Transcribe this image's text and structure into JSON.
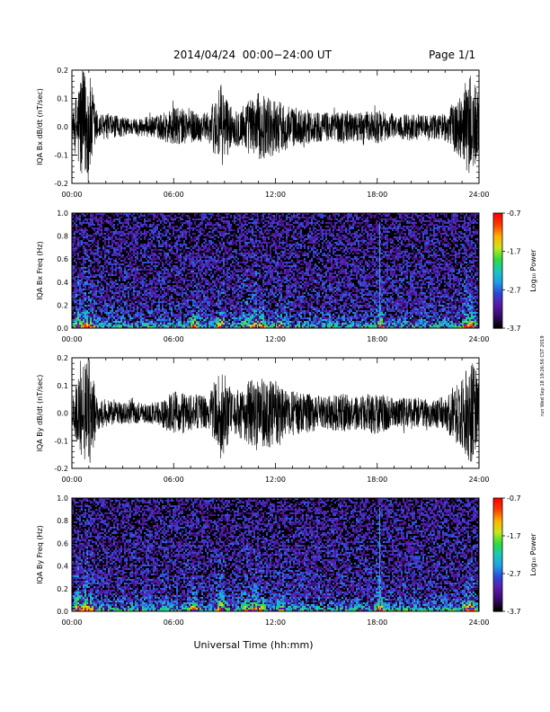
{
  "header": {
    "title": "2014/04/24  00:00−24:00 UT",
    "page": "Page 1/1"
  },
  "footer": {
    "xlabel": "Universal Time (hh:mm)"
  },
  "side_timestamp": "run Wed Sep 18 19:26:56 CST 2019",
  "colorbar": {
    "label": "Log₁₀ Power",
    "ticks": [
      "-0.7",
      "-1.7",
      "-2.7",
      "-3.7"
    ],
    "range": [
      -3.7,
      -0.7
    ],
    "colors": [
      "#000000",
      "#3a0a6e",
      "#5a1aa8",
      "#2d49d8",
      "#1fa0e8",
      "#19c8b8",
      "#2edc3c",
      "#c8e61c",
      "#ffb400",
      "#ff4000",
      "#ff0000"
    ]
  },
  "chart_data": [
    {
      "type": "line",
      "name": "IQA Bx dB/dt",
      "ylabel": "IQA Bx dB/dt (nT/sec)",
      "xlim": [
        0,
        24
      ],
      "ylim": [
        -0.2,
        0.2
      ],
      "x_ticks": [
        "00:00",
        "06:00",
        "12:00",
        "18:00",
        "24:00"
      ],
      "y_ticks": [
        "0.2",
        "0.1",
        "0.0",
        "-0.1",
        "-0.2"
      ],
      "color": "#000000",
      "envelope": {
        "x": [
          0,
          0.5,
          1.0,
          1.5,
          2.5,
          3.5,
          5.0,
          6.0,
          7.0,
          8.0,
          8.8,
          9.5,
          10.5,
          11.0,
          12.0,
          13.0,
          14.0,
          15.0,
          16.0,
          17.0,
          18.0,
          19.0,
          20.0,
          21.0,
          22.0,
          23.0,
          23.6,
          24.0
        ],
        "y": [
          0.03,
          0.2,
          0.2,
          0.05,
          0.04,
          0.03,
          0.04,
          0.07,
          0.06,
          0.05,
          0.15,
          0.06,
          0.1,
          0.12,
          0.1,
          0.07,
          0.06,
          0.05,
          0.06,
          0.05,
          0.06,
          0.04,
          0.05,
          0.04,
          0.05,
          0.12,
          0.2,
          0.1
        ]
      }
    },
    {
      "type": "heatmap",
      "name": "IQA Bx Freq",
      "ylabel": "IQA Bx Freq (Hz)",
      "xlim": [
        0,
        24
      ],
      "ylim": [
        0,
        1.0
      ],
      "x_ticks": [
        "00:00",
        "06:00",
        "12:00",
        "18:00",
        "24:00"
      ],
      "y_ticks": [
        "1.0",
        "0.8",
        "0.6",
        "0.4",
        "0.2",
        "0.0"
      ],
      "zlim": [
        -3.7,
        -0.7
      ]
    },
    {
      "type": "line",
      "name": "IQA By dB/dt",
      "ylabel": "IQA By dB/dt (nT/sec)",
      "xlim": [
        0,
        24
      ],
      "ylim": [
        -0.2,
        0.2
      ],
      "x_ticks": [
        "00:00",
        "06:00",
        "12:00",
        "18:00",
        "24:00"
      ],
      "y_ticks": [
        "0.2",
        "0.1",
        "0.0",
        "-0.1",
        "-0.2"
      ],
      "color": "#000000",
      "envelope": {
        "x": [
          0,
          0.5,
          1.0,
          1.5,
          2.5,
          3.5,
          5.0,
          6.0,
          7.0,
          8.0,
          8.8,
          9.5,
          10.5,
          11.0,
          12.0,
          13.0,
          14.0,
          15.0,
          16.0,
          17.0,
          18.0,
          19.0,
          20.0,
          21.0,
          22.0,
          23.0,
          23.6,
          24.0
        ],
        "y": [
          0.04,
          0.2,
          0.2,
          0.06,
          0.04,
          0.04,
          0.04,
          0.08,
          0.07,
          0.06,
          0.17,
          0.07,
          0.12,
          0.14,
          0.12,
          0.08,
          0.07,
          0.06,
          0.07,
          0.06,
          0.08,
          0.05,
          0.06,
          0.05,
          0.06,
          0.14,
          0.2,
          0.12
        ]
      }
    },
    {
      "type": "heatmap",
      "name": "IQA By Freq",
      "ylabel": "IQA By Freq (Hz)",
      "xlim": [
        0,
        24
      ],
      "ylim": [
        0,
        1.0
      ],
      "x_ticks": [
        "00:00",
        "06:00",
        "12:00",
        "18:00",
        "24:00"
      ],
      "y_ticks": [
        "1.0",
        "0.8",
        "0.6",
        "0.4",
        "0.2",
        "0.0"
      ],
      "zlim": [
        -3.7,
        -0.7
      ]
    }
  ]
}
